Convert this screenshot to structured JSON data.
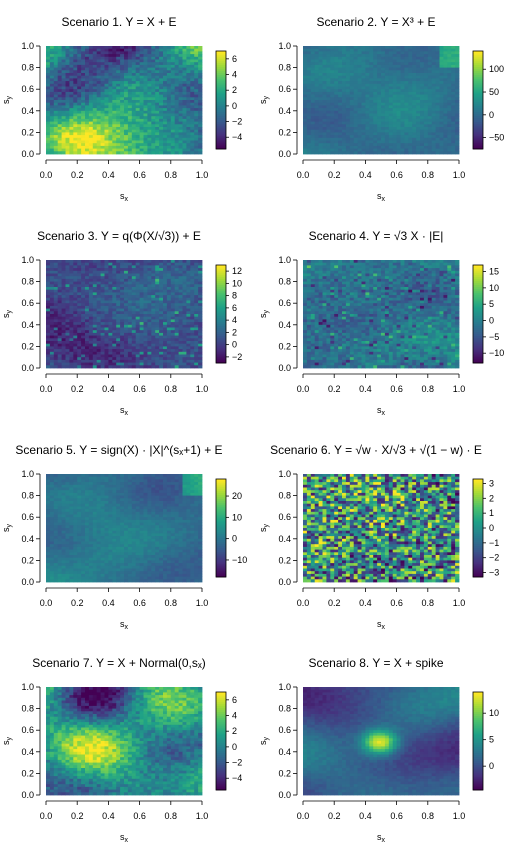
{
  "axis_ticks": [
    "0.0",
    "0.2",
    "0.4",
    "0.6",
    "0.8",
    "1.0"
  ],
  "xlabel_main": "s",
  "xlabel_sub": "x",
  "ylabel_main": "s",
  "ylabel_sub": "y",
  "colormap": [
    "#440154",
    "#46327e",
    "#365c8d",
    "#277f8e",
    "#1fa187",
    "#4ac16d",
    "#a0da39",
    "#fde725"
  ],
  "chart_data": [
    {
      "type": "heatmap",
      "title_prefix": "Scenario 1. Y = ",
      "title_formula": "X + E",
      "grid": [
        40,
        40
      ],
      "colorbar_ticks": [
        6,
        4,
        2,
        0,
        -2,
        -4
      ],
      "colorbar_range": [
        -5.5,
        7
      ],
      "pattern": "smooth",
      "xlim": [
        0,
        1
      ],
      "ylim": [
        0,
        1
      ]
    },
    {
      "type": "heatmap",
      "title_prefix": "Scenario 2. Y = ",
      "title_formula": "X³ + E",
      "grid": [
        40,
        40
      ],
      "colorbar_ticks": [
        100,
        50,
        0,
        -50
      ],
      "colorbar_range": [
        -75,
        140
      ],
      "pattern": "mostly-flat",
      "xlim": [
        0,
        1
      ],
      "ylim": [
        0,
        1
      ]
    },
    {
      "type": "heatmap",
      "title_prefix": "Scenario 3. Y = ",
      "title_formula": "q(Φ(X/√3)) + E",
      "grid": [
        40,
        40
      ],
      "colorbar_ticks": [
        12,
        10,
        8,
        6,
        4,
        2,
        0,
        -2
      ],
      "colorbar_range": [
        -3,
        13
      ],
      "pattern": "dark-speckled",
      "xlim": [
        0,
        1
      ],
      "ylim": [
        0,
        1
      ]
    },
    {
      "type": "heatmap",
      "title_prefix": "Scenario 4. Y = ",
      "title_formula": "√3 X · |E|",
      "grid": [
        40,
        40
      ],
      "colorbar_ticks": [
        15,
        10,
        5,
        0,
        -5,
        -10
      ],
      "colorbar_range": [
        -13,
        17
      ],
      "pattern": "speckled",
      "xlim": [
        0,
        1
      ],
      "ylim": [
        0,
        1
      ]
    },
    {
      "type": "heatmap",
      "title_prefix": "Scenario 5. Y = ",
      "title_formula": "sign(X) · |X|^(sₓ+1) + E",
      "grid": [
        40,
        40
      ],
      "colorbar_ticks": [
        20,
        10,
        0,
        -10
      ],
      "colorbar_range": [
        -18,
        28
      ],
      "pattern": "mostly-flat",
      "xlim": [
        0,
        1
      ],
      "ylim": [
        0,
        1
      ]
    },
    {
      "type": "heatmap",
      "title_prefix": "Scenario 6. Y = ",
      "title_formula": "√w · X/√3 + √(1 − w) · E",
      "grid": [
        40,
        40
      ],
      "colorbar_ticks": [
        3,
        2,
        1,
        0,
        -1,
        -2,
        -3
      ],
      "colorbar_range": [
        -3.3,
        3.3
      ],
      "pattern": "noisy",
      "xlim": [
        0,
        1
      ],
      "ylim": [
        0,
        1
      ]
    },
    {
      "type": "heatmap",
      "title_prefix": "Scenario 7. Y = ",
      "title_formula": "X + Normal(0,sₓ)",
      "grid": [
        40,
        40
      ],
      "colorbar_ticks": [
        6,
        4,
        2,
        0,
        -2,
        -4
      ],
      "colorbar_range": [
        -5.5,
        7
      ],
      "pattern": "smooth",
      "xlim": [
        0,
        1
      ],
      "ylim": [
        0,
        1
      ]
    },
    {
      "type": "heatmap",
      "title_prefix": "Scenario 8. Y = ",
      "title_formula": "X + spike",
      "grid": [
        40,
        40
      ],
      "colorbar_ticks": [
        10,
        5,
        0
      ],
      "colorbar_range": [
        -4.5,
        14
      ],
      "pattern": "spike",
      "xlim": [
        0,
        1
      ],
      "ylim": [
        0,
        1
      ]
    }
  ]
}
